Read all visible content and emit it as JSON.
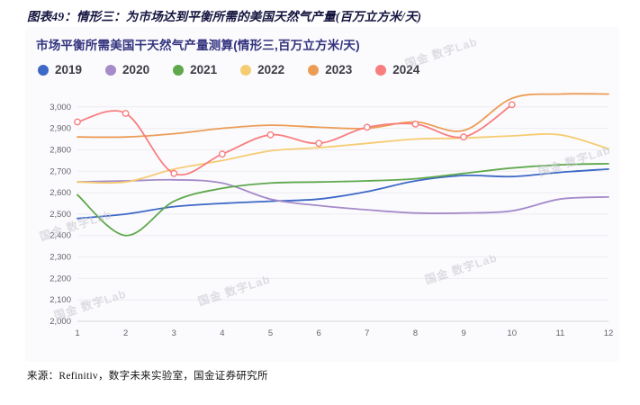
{
  "page": {
    "title": "图表49：情形三：为市场达到平衡所需的美国天然气产量(百万立方米/天)",
    "source": "来源：Refinitiv，数字未来实验室，国金证券研究所",
    "watermark": "国金 数字Lab"
  },
  "chart_data": {
    "type": "line",
    "title": "市场平衡所需美国干天然气产量测算(情形三,百万立方米/天)",
    "xlabel": "",
    "ylabel": "",
    "x": [
      1,
      2,
      3,
      4,
      5,
      6,
      7,
      8,
      9,
      10,
      11,
      12
    ],
    "ylim": [
      2000,
      3100
    ],
    "grid": "horizontal",
    "legend_position": "top",
    "yticks": [
      {
        "v": 2000,
        "label": "2,000"
      },
      {
        "v": 2100,
        "label": "2,100"
      },
      {
        "v": 2200,
        "label": "2,200"
      },
      {
        "v": 2300,
        "label": "2,300"
      },
      {
        "v": 2400,
        "label": "2,400"
      },
      {
        "v": 2500,
        "label": "2,500"
      },
      {
        "v": 2600,
        "label": "2,600"
      },
      {
        "v": 2700,
        "label": "2,700"
      },
      {
        "v": 2800,
        "label": "2,800"
      },
      {
        "v": 2900,
        "label": "2,900"
      },
      {
        "v": 3000,
        "label": "3,000"
      }
    ],
    "series": [
      {
        "name": "2019",
        "color": "#3d68c5",
        "marker": "none",
        "values": [
          2480,
          2500,
          2535,
          2550,
          2560,
          2570,
          2605,
          2655,
          2680,
          2675,
          2695,
          2710
        ]
      },
      {
        "name": "2020",
        "color": "#a58bc8",
        "marker": "none",
        "values": [
          2650,
          2655,
          2660,
          2645,
          2570,
          2540,
          2520,
          2505,
          2505,
          2515,
          2570,
          2580
        ]
      },
      {
        "name": "2021",
        "color": "#5fa84c",
        "marker": "none",
        "values": [
          2590,
          2400,
          2560,
          2620,
          2645,
          2650,
          2655,
          2665,
          2690,
          2715,
          2730,
          2735
        ]
      },
      {
        "name": "2022",
        "color": "#f6cc72",
        "marker": "none",
        "values": [
          2650,
          2650,
          2710,
          2750,
          2795,
          2810,
          2830,
          2850,
          2855,
          2865,
          2870,
          2805
        ]
      },
      {
        "name": "2023",
        "color": "#ec9c55",
        "marker": "none",
        "values": [
          2860,
          2860,
          2875,
          2900,
          2915,
          2905,
          2900,
          2930,
          2890,
          3040,
          3060,
          3060
        ]
      },
      {
        "name": "2024",
        "color": "#f87e7e",
        "marker": "circle-open",
        "values": [
          2930,
          2970,
          2690,
          2780,
          2870,
          2830,
          2905,
          2920,
          2860,
          3010
        ]
      }
    ]
  }
}
